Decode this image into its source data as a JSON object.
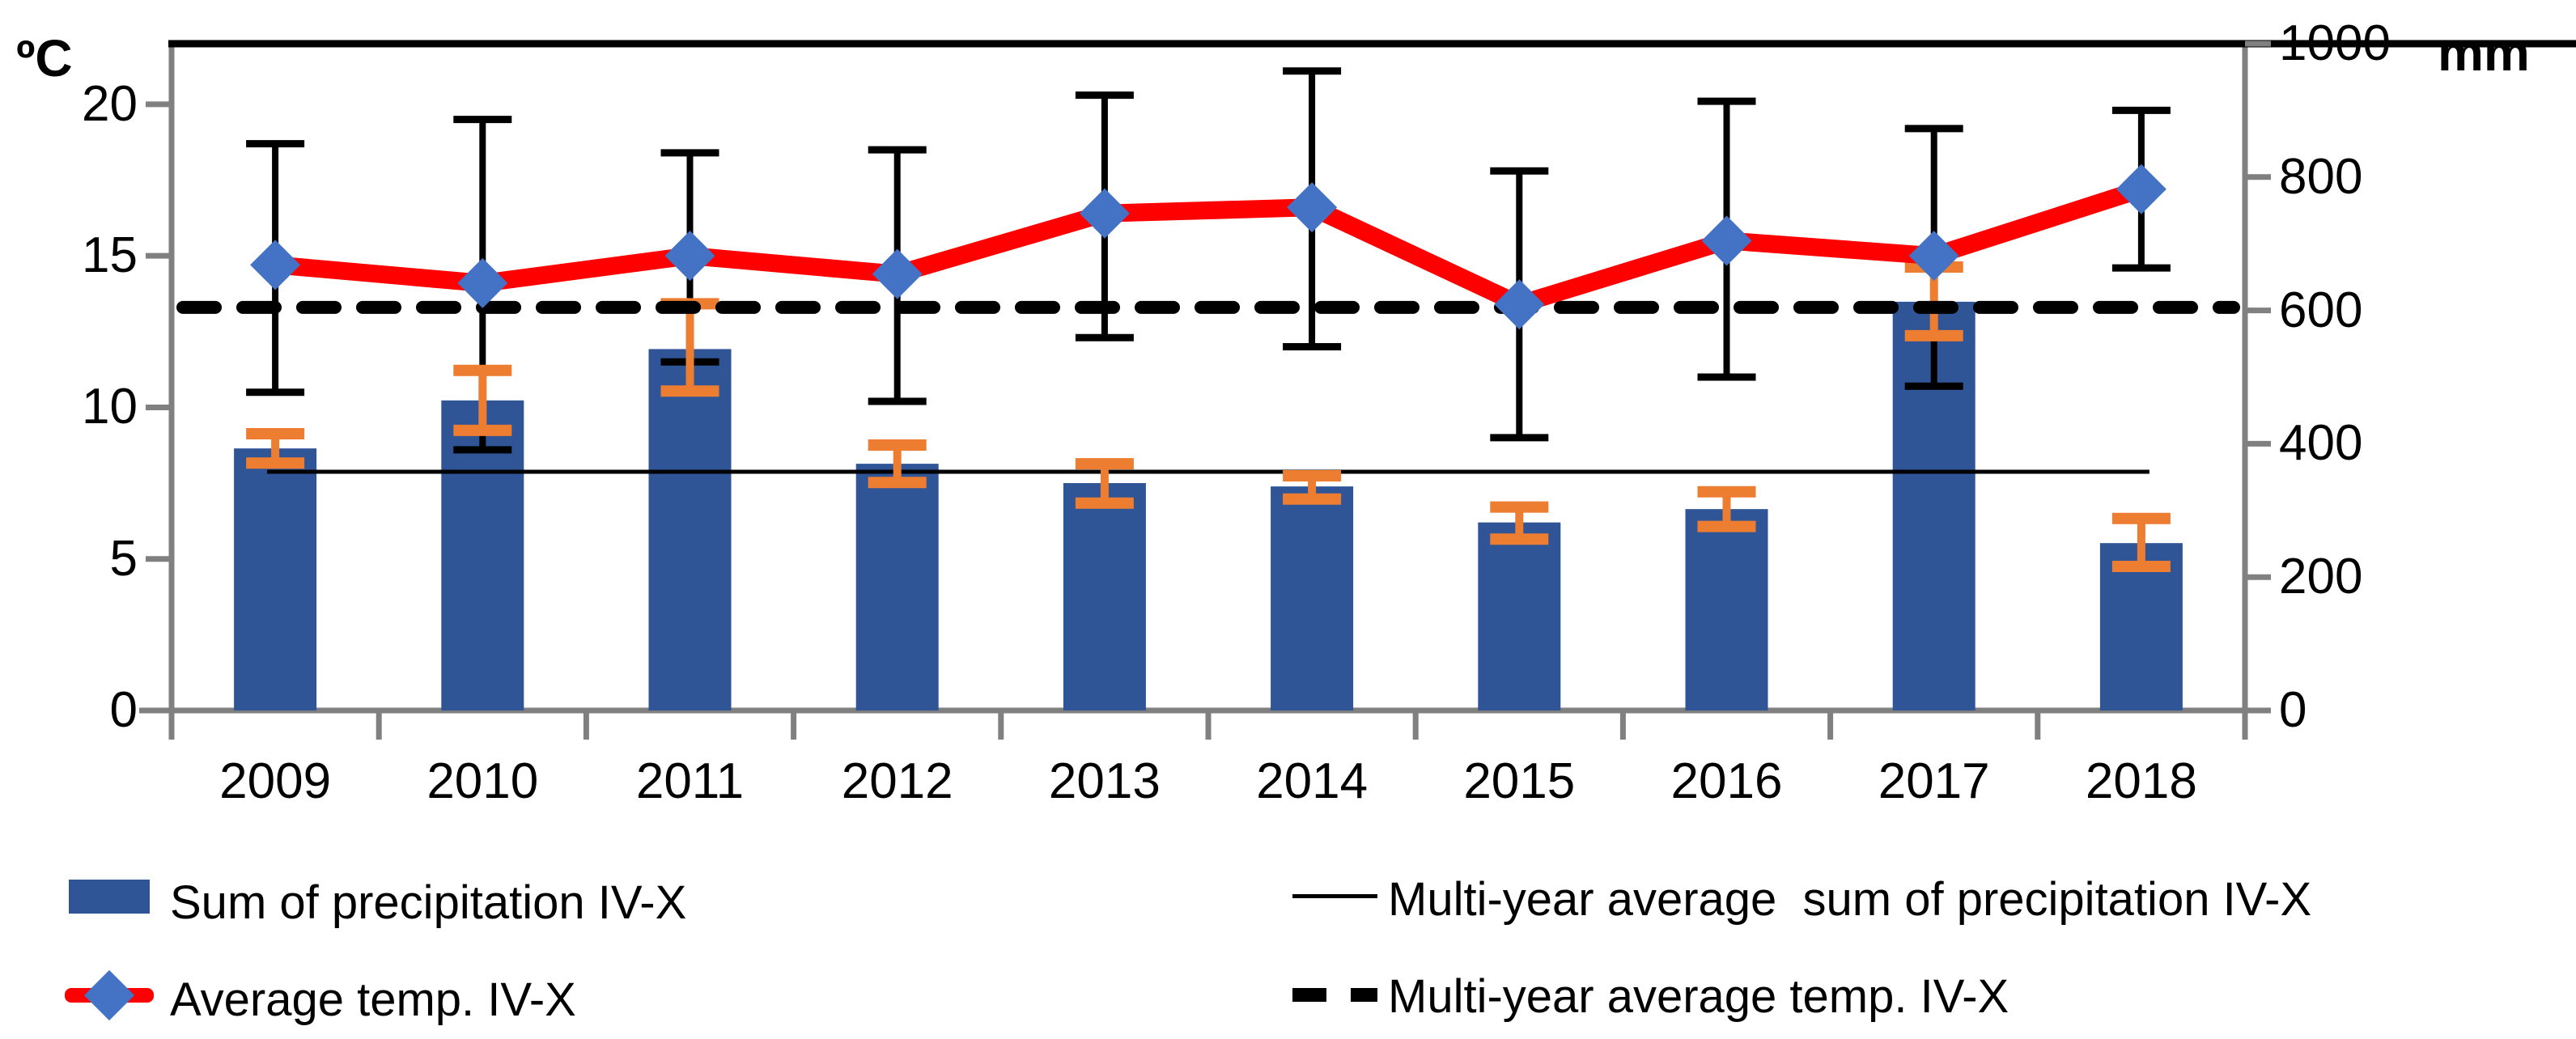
{
  "chart_data": {
    "type": "bar",
    "subtype": "combo-bar-line-dual-axis",
    "categories": [
      "2009",
      "2010",
      "2011",
      "2012",
      "2013",
      "2014",
      "2015",
      "2016",
      "2017",
      "2018"
    ],
    "series": [
      {
        "name": "Sum of precipitation IV-X",
        "type": "bar",
        "axis": "right",
        "unit": "mm",
        "values": [
          393,
          465,
          542,
          370,
          341,
          336,
          282,
          302,
          613,
          251
        ],
        "error_upper": [
          415,
          510,
          610,
          398,
          370,
          352,
          305,
          328,
          665,
          288
        ],
        "error_lower": [
          371,
          420,
          479,
          342,
          311,
          317,
          257,
          276,
          562,
          216
        ],
        "color": "#2F5597",
        "error_color": "#ED7D31"
      },
      {
        "name": "Average temp. IV-X",
        "type": "line",
        "axis": "left",
        "unit": "ºC",
        "values": [
          14.7,
          14.1,
          15.0,
          14.4,
          16.4,
          16.6,
          13.4,
          15.5,
          15.0,
          17.2
        ],
        "error_upper": [
          18.7,
          19.5,
          18.4,
          18.5,
          20.3,
          21.1,
          17.8,
          20.1,
          19.2,
          19.8
        ],
        "error_lower": [
          10.5,
          8.6,
          11.5,
          10.2,
          12.3,
          12.0,
          9.0,
          11.0,
          10.7,
          14.6
        ],
        "color": "#FF0000",
        "marker": "diamond",
        "marker_color": "#4472C4",
        "error_color": "#000000"
      },
      {
        "name": "Multi-year average  sum of precipitation IV-X",
        "type": "hline",
        "axis": "right",
        "value": 358,
        "style": "solid-thin",
        "color": "#000000"
      },
      {
        "name": "Multi-year average temp. IV-X",
        "type": "hline",
        "axis": "left",
        "value": 13.3,
        "style": "dashed-thick",
        "color": "#000000"
      }
    ],
    "left_axis": {
      "label": "ºC",
      "min": 0,
      "max": 22,
      "ticks": [
        0,
        5,
        10,
        15,
        20
      ]
    },
    "right_axis": {
      "label": "mm",
      "min": 0,
      "max": 1000,
      "ticks": [
        0,
        200,
        400,
        600,
        800,
        1000
      ]
    },
    "grid": false,
    "legend_position": "bottom"
  },
  "legend": {
    "precip_label": "Sum of precipitation IV-X",
    "temp_label": "Average temp. IV-X",
    "avg_precip_label": "Multi-year average  sum of precipitation IV-X",
    "avg_temp_label": "Multi-year average temp. IV-X"
  },
  "axis_units": {
    "left": "ºC",
    "right": "mm"
  },
  "colors": {
    "bar": "#2F5597",
    "bar_error": "#ED7D31",
    "temp_line": "#FF0000",
    "temp_marker": "#4472C4",
    "axis_gray": "#808080",
    "black": "#000000"
  }
}
